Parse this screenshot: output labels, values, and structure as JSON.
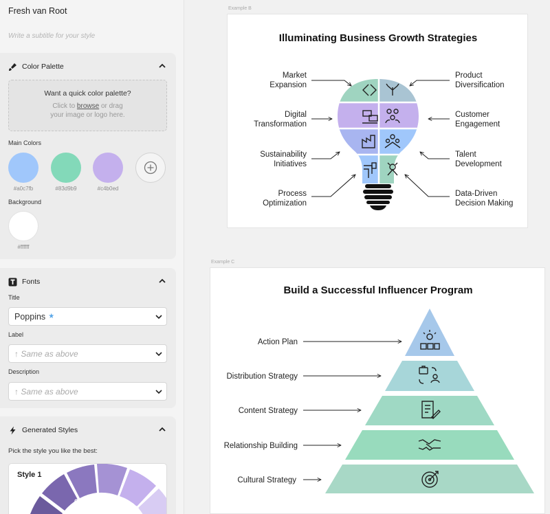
{
  "sidebar": {
    "style_name": "Fresh van Root",
    "subtitle_placeholder": "Write a subtitle for your style",
    "palette": {
      "title": "Color Palette",
      "dropzone_title": "Want a quick color palette?",
      "dropzone_line1_prefix": "Click to",
      "dropzone_browse": "browse",
      "dropzone_line1_suffix": "or drag",
      "dropzone_line2": "your image or logo here.",
      "main_colors_label": "Main Colors",
      "main_colors": [
        {
          "hex": "#a0c7fb",
          "label": "#a0c7fb"
        },
        {
          "hex": "#83d9b9",
          "label": "#83d9b9"
        },
        {
          "hex": "#c4b0ed",
          "label": "#c4b0ed"
        }
      ],
      "background_label": "Background",
      "background": {
        "hex": "#ffffff",
        "label": "#ffffff"
      }
    },
    "fonts": {
      "title": "Fonts",
      "title_label": "Title",
      "title_font": "Poppins",
      "label_label": "Label",
      "label_font": "↑ Same as above",
      "description_label": "Description",
      "description_font": "↑ Same as above"
    },
    "generated": {
      "title": "Generated Styles",
      "pick_text": "Pick the style you like the best:",
      "style_card_title": "Style 1"
    }
  },
  "canvas": {
    "example_b": {
      "label": "Example B",
      "title": "Illuminating Business Growth Strategies",
      "left_labels": [
        [
          "Market",
          "Expansion"
        ],
        [
          "Digital",
          "Transformation"
        ],
        [
          "Sustainability",
          "Initiatives"
        ],
        [
          "Process",
          "Optimization"
        ]
      ],
      "right_labels": [
        [
          "Product",
          "Diversification"
        ],
        [
          "Customer",
          "Engagement"
        ],
        [
          "Talent",
          "Development"
        ],
        [
          "Data-Driven",
          "Decision Making"
        ]
      ]
    },
    "example_c": {
      "label": "Example C",
      "title": "Build a Successful Influencer Program",
      "levels": [
        "Action Plan",
        "Distribution Strategy",
        "Content Strategy",
        "Relationship Building",
        "Cultural Strategy"
      ]
    }
  },
  "colors": {
    "blue": "#a0c7fb",
    "green": "#83d9b9",
    "purple": "#c4b0ed",
    "teal_top": "#bfe0d6",
    "bulb_gray": "#aab8c2"
  }
}
